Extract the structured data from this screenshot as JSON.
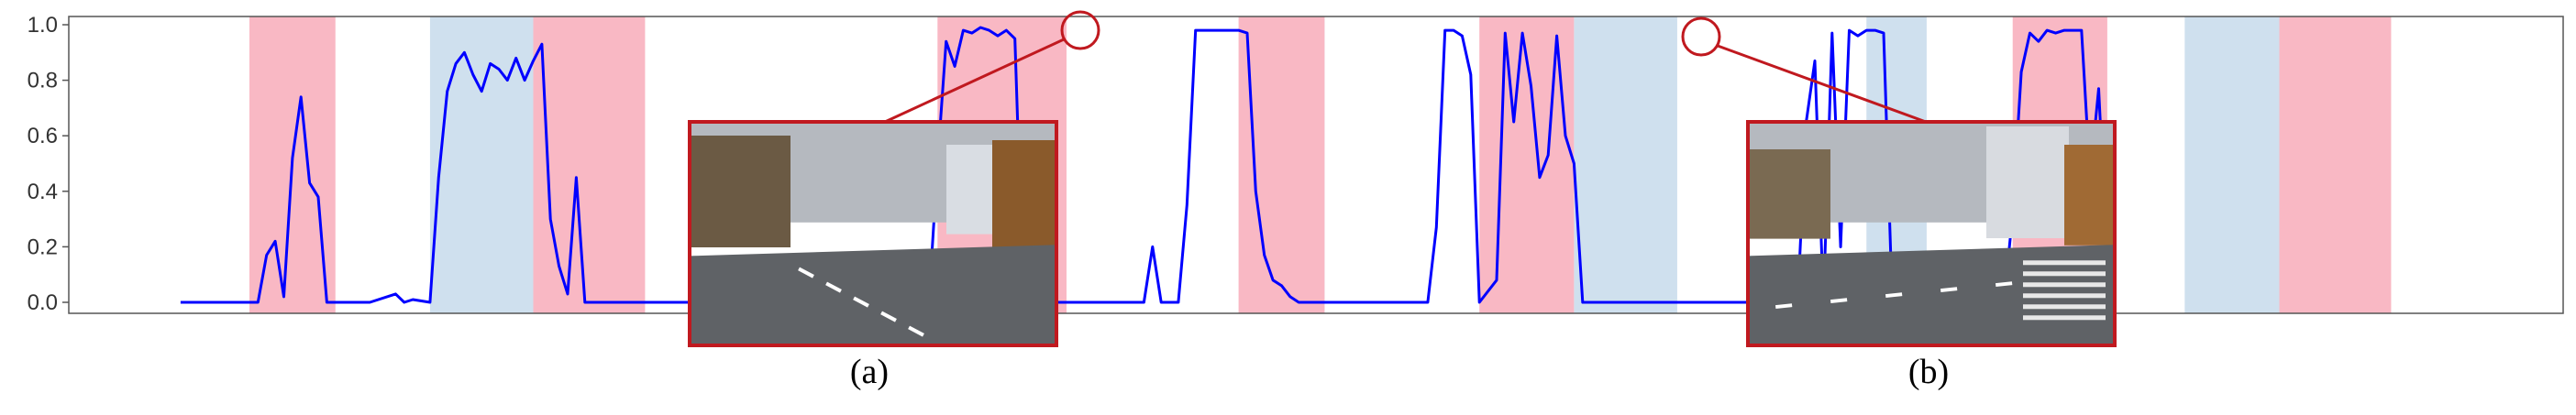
{
  "chart_data": {
    "type": "line",
    "ylim": [
      0,
      1.0
    ],
    "xlim": [
      0,
      290
    ],
    "yticks": [
      "0.0",
      "0.2",
      "0.4",
      "0.6",
      "0.8",
      "1.0"
    ],
    "grid": false,
    "series": [
      {
        "color": "#0000ff",
        "points": [
          [
            13,
            0
          ],
          [
            20,
            0
          ],
          [
            22,
            0.0
          ],
          [
            23,
            0.17
          ],
          [
            24,
            0.22
          ],
          [
            25,
            0.02
          ],
          [
            26,
            0.52
          ],
          [
            27,
            0.74
          ],
          [
            28,
            0.43
          ],
          [
            29,
            0.38
          ],
          [
            30,
            0.0
          ],
          [
            35,
            0.0
          ],
          [
            38,
            0.03
          ],
          [
            39,
            0.0
          ],
          [
            40,
            0.01
          ],
          [
            42,
            0.0
          ],
          [
            43,
            0.45
          ],
          [
            44,
            0.76
          ],
          [
            45,
            0.86
          ],
          [
            46,
            0.9
          ],
          [
            47,
            0.82
          ],
          [
            48,
            0.76
          ],
          [
            49,
            0.86
          ],
          [
            50,
            0.84
          ],
          [
            51,
            0.8
          ],
          [
            52,
            0.88
          ],
          [
            53,
            0.8
          ],
          [
            54,
            0.87
          ],
          [
            55,
            0.93
          ],
          [
            56,
            0.3
          ],
          [
            57,
            0.13
          ],
          [
            58,
            0.03
          ],
          [
            59,
            0.45
          ],
          [
            60,
            0.0
          ],
          [
            65,
            0.0
          ],
          [
            100,
            0.0
          ],
          [
            101,
            0.5
          ],
          [
            102,
            0.94
          ],
          [
            103,
            0.85
          ],
          [
            104,
            0.98
          ],
          [
            105,
            0.97
          ],
          [
            106,
            0.99
          ],
          [
            107,
            0.98
          ],
          [
            108,
            0.96
          ],
          [
            109,
            0.98
          ],
          [
            110,
            0.95
          ],
          [
            111,
            0.0
          ],
          [
            125,
            0.0
          ],
          [
            126,
            0.2
          ],
          [
            127,
            0.0
          ],
          [
            129,
            0.0
          ],
          [
            130,
            0.35
          ],
          [
            131,
            0.98
          ],
          [
            132,
            0.98
          ],
          [
            134,
            0.98
          ],
          [
            136,
            0.98
          ],
          [
            137,
            0.97
          ],
          [
            138,
            0.4
          ],
          [
            139,
            0.17
          ],
          [
            140,
            0.08
          ],
          [
            141,
            0.06
          ],
          [
            142,
            0.02
          ],
          [
            143,
            0.0
          ],
          [
            158,
            0.0
          ],
          [
            159,
            0.27
          ],
          [
            160,
            0.98
          ],
          [
            161,
            0.98
          ],
          [
            162,
            0.96
          ],
          [
            163,
            0.82
          ],
          [
            164,
            0.0
          ],
          [
            166,
            0.08
          ],
          [
            167,
            0.97
          ],
          [
            168,
            0.65
          ],
          [
            169,
            0.97
          ],
          [
            170,
            0.78
          ],
          [
            171,
            0.45
          ],
          [
            172,
            0.53
          ],
          [
            173,
            0.96
          ],
          [
            174,
            0.6
          ],
          [
            175,
            0.5
          ],
          [
            176,
            0.0
          ],
          [
            201,
            0.0
          ],
          [
            202,
            0.65
          ],
          [
            203,
            0.87
          ],
          [
            204,
            0.0
          ],
          [
            205,
            0.97
          ],
          [
            206,
            0.2
          ],
          [
            207,
            0.98
          ],
          [
            208,
            0.96
          ],
          [
            209,
            0.98
          ],
          [
            210,
            0.98
          ],
          [
            211,
            0.97
          ],
          [
            212,
            0.0
          ],
          [
            225,
            0.0
          ],
          [
            226,
            0.32
          ],
          [
            227,
            0.83
          ],
          [
            228,
            0.97
          ],
          [
            229,
            0.94
          ],
          [
            230,
            0.98
          ],
          [
            231,
            0.97
          ],
          [
            232,
            0.98
          ],
          [
            234,
            0.98
          ],
          [
            235,
            0.45
          ],
          [
            236,
            0.77
          ],
          [
            237,
            0.13
          ]
        ]
      }
    ],
    "highlight_red": [
      [
        21,
        31
      ],
      [
        54,
        67
      ],
      [
        101,
        116
      ],
      [
        136,
        146
      ],
      [
        164,
        175
      ],
      [
        226,
        237
      ],
      [
        257,
        270
      ]
    ],
    "highlight_blue": [
      [
        42,
        54
      ],
      [
        138,
        146
      ],
      [
        175,
        187
      ],
      [
        248,
        254
      ],
      [
        209,
        216
      ],
      [
        246,
        257
      ]
    ],
    "insets": [
      {
        "label": "(a)",
        "description": "Road view with parked cars on the left, curving lane markings, buildings and traffic signs on an overcast day"
      },
      {
        "label": "(b)",
        "description": "Wide intersection with crosswalk lines on the right, traffic light mounted overhead, tall building on the right"
      }
    ]
  },
  "captions": {
    "a": "(a)",
    "b": "(b)"
  }
}
